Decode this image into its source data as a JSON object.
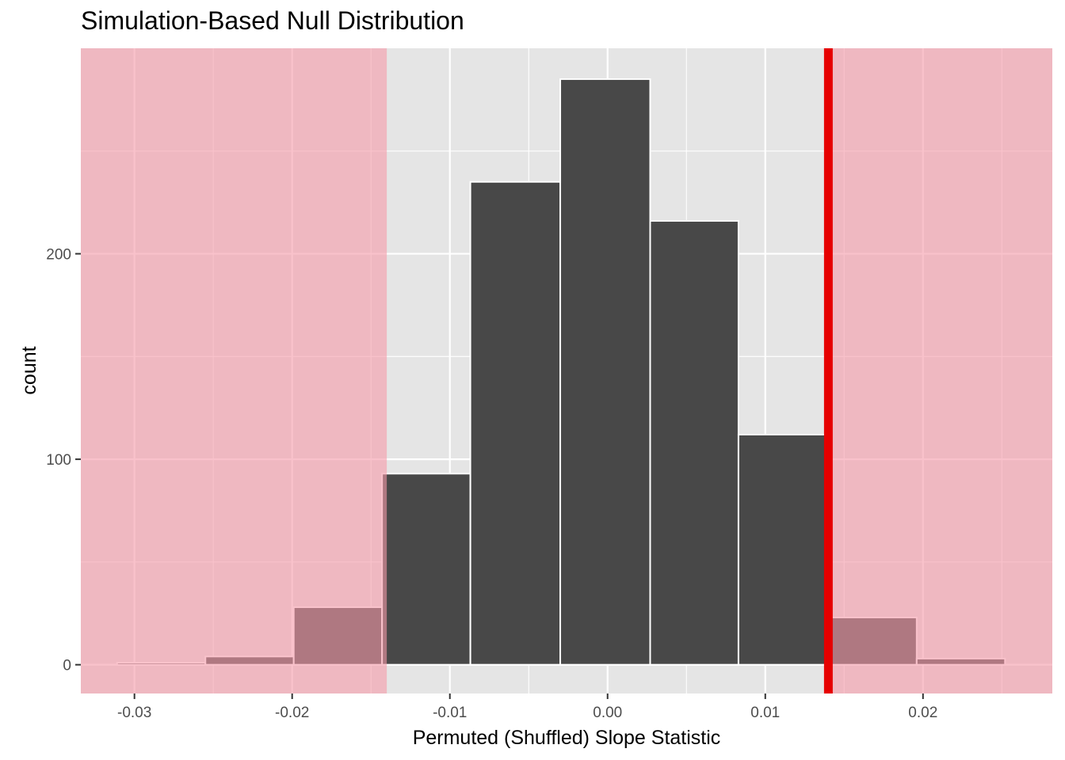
{
  "chart_data": {
    "type": "bar",
    "title": "Simulation-Based Null Distribution",
    "xlabel": "Permuted (Shuffled) Slope Statistic",
    "ylabel": "count",
    "xlim": [
      -0.0334,
      0.0282
    ],
    "ylim": [
      -14,
      300
    ],
    "x_ticks": [
      -0.03,
      -0.02,
      -0.01,
      0.0,
      0.01,
      0.02
    ],
    "x_tick_labels": [
      "-0.03",
      "-0.02",
      "-0.01",
      "0.00",
      "0.01",
      "0.02"
    ],
    "y_ticks": [
      0,
      100,
      200
    ],
    "y_tick_labels": [
      "0",
      "100",
      "200"
    ],
    "bins": [
      {
        "x0": -0.0311,
        "x1": -0.0255,
        "count": 1
      },
      {
        "x0": -0.0255,
        "x1": -0.0199,
        "count": 4
      },
      {
        "x0": -0.0199,
        "x1": -0.0143,
        "count": 28
      },
      {
        "x0": -0.0143,
        "x1": -0.0087,
        "count": 93
      },
      {
        "x0": -0.0087,
        "x1": -0.003,
        "count": 235
      },
      {
        "x0": -0.003,
        "x1": 0.0027,
        "count": 285
      },
      {
        "x0": 0.0027,
        "x1": 0.0083,
        "count": 216
      },
      {
        "x0": 0.0083,
        "x1": 0.0139,
        "count": 112
      },
      {
        "x0": 0.0139,
        "x1": 0.0196,
        "count": 23
      },
      {
        "x0": 0.0196,
        "x1": 0.0252,
        "count": 3
      }
    ],
    "observed_statistic": 0.014,
    "shade_direction": "two-sided",
    "shade_lower_bound": -0.014,
    "colors": {
      "panel": "#e5e5e5",
      "grid": "#ffffff",
      "bar": "#484848",
      "bar_outline": "#ffffff",
      "shade": "#f59aa8",
      "observed_line": "#e60000"
    }
  }
}
